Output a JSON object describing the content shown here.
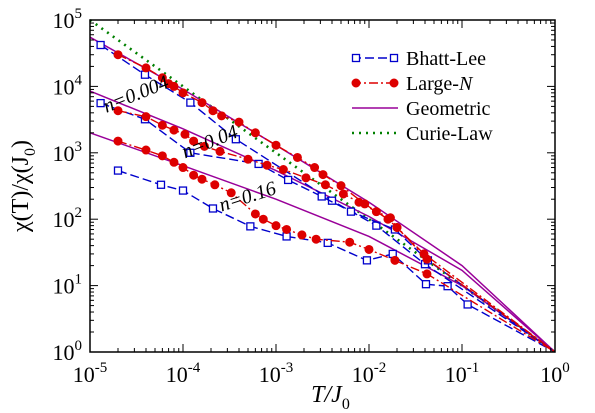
{
  "chart_data": {
    "type": "line",
    "xscale": "log",
    "yscale": "log",
    "xlim": [
      1e-05,
      1
    ],
    "ylim": [
      1,
      100000
    ],
    "x_ticks": [
      {
        "value": 1e-05,
        "base": "10",
        "exp": "-5"
      },
      {
        "value": 0.0001,
        "base": "10",
        "exp": "-4"
      },
      {
        "value": 0.001,
        "base": "10",
        "exp": "-3"
      },
      {
        "value": 0.01,
        "base": "10",
        "exp": "-2"
      },
      {
        "value": 0.1,
        "base": "10",
        "exp": "-1"
      },
      {
        "value": 1,
        "base": "10",
        "exp": "0"
      }
    ],
    "y_ticks": [
      {
        "value": 1,
        "base": "10",
        "exp": "0"
      },
      {
        "value": 10,
        "base": "10",
        "exp": "1"
      },
      {
        "value": 100,
        "base": "10",
        "exp": "2"
      },
      {
        "value": 1000,
        "base": "10",
        "exp": "3"
      },
      {
        "value": 10000,
        "base": "10",
        "exp": "4"
      },
      {
        "value": 100000,
        "base": "10",
        "exp": "5"
      }
    ],
    "xlabel": {
      "main": "T/J",
      "sub": "0"
    },
    "ylabel": {
      "text": "χ(T)/χ(J",
      "sub": "0",
      "close": ")"
    },
    "legend": {
      "position": "top-right",
      "entries": [
        {
          "label": "Bhatt-Lee",
          "series": "bhatt"
        },
        {
          "label": "Large-",
          "label_italic": "N",
          "series": "largeN"
        },
        {
          "label": "Geometric",
          "series": "geometric"
        },
        {
          "label": "Curie-Law",
          "series": "curie"
        }
      ]
    },
    "annotations": [
      {
        "text": "n=0.004",
        "x": 1.5e-05,
        "y": 4000,
        "angle": -22
      },
      {
        "text": "n=0.04",
        "x": 0.000105,
        "y": 820,
        "angle": -22
      },
      {
        "text": "n=0.16",
        "x": 0.00026,
        "y": 130,
        "angle": -18
      }
    ],
    "series": [
      {
        "name": "Curie-Law",
        "style": "curie",
        "color": "#008000",
        "points": [
          [
            1e-05,
            100000
          ],
          [
            1,
            1
          ]
        ]
      },
      {
        "style": "geometric",
        "color": "#990099",
        "points": [
          [
            1e-05,
            55000
          ],
          [
            0.0001,
            9000
          ],
          [
            0.001,
            1300
          ],
          [
            0.01,
            180
          ],
          [
            0.1,
            20
          ],
          [
            1,
            1
          ]
        ]
      },
      {
        "style": "geometric",
        "color": "#990099",
        "points": [
          [
            1e-05,
            8500
          ],
          [
            0.0001,
            2300
          ],
          [
            0.001,
            540
          ],
          [
            0.01,
            110
          ],
          [
            0.1,
            17
          ],
          [
            1,
            1
          ]
        ]
      },
      {
        "style": "geometric",
        "color": "#990099",
        "points": [
          [
            1e-05,
            2000
          ],
          [
            0.0001,
            640
          ],
          [
            0.001,
            200
          ],
          [
            0.01,
            55
          ],
          [
            0.1,
            10
          ],
          [
            1,
            1
          ]
        ]
      },
      {
        "style": "bhatt",
        "color": "#0000cc",
        "points": [
          [
            1.3e-05,
            42000
          ],
          [
            3.9e-05,
            15000
          ],
          [
            0.00012,
            5700
          ],
          [
            0.00037,
            1600
          ],
          [
            0.004,
            190
          ],
          [
            0.012,
            80
          ],
          [
            0.04,
            21
          ],
          [
            1,
            1
          ]
        ]
      },
      {
        "style": "bhatt",
        "color": "#0000cc",
        "points": [
          [
            1.3e-05,
            5600
          ],
          [
            3.9e-05,
            3200
          ],
          [
            0.00012,
            1000
          ],
          [
            0.00065,
            680
          ],
          [
            0.00135,
            390
          ],
          [
            0.0031,
            220
          ],
          [
            0.0064,
            130
          ],
          [
            0.019,
            70
          ],
          [
            0.043,
            24
          ],
          [
            1,
            1
          ]
        ]
      },
      {
        "style": "bhatt",
        "color": "#0000cc",
        "points": [
          [
            2e-05,
            540
          ],
          [
            5.8e-05,
            330
          ],
          [
            0.0001,
            270
          ],
          [
            0.00021,
            145
          ],
          [
            0.00053,
            78
          ],
          [
            0.0013,
            55
          ],
          [
            0.0036,
            44
          ],
          [
            0.0095,
            24
          ],
          [
            0.018,
            30
          ],
          [
            0.041,
            10.5
          ],
          [
            0.07,
            9.8
          ],
          [
            0.115,
            5.2
          ],
          [
            1,
            1
          ]
        ]
      },
      {
        "style": "largeN",
        "color": "#dd0000",
        "points": [
          [
            2e-05,
            30000
          ],
          [
            4e-05,
            19000
          ],
          [
            6e-05,
            13500
          ],
          [
            7e-05,
            11000
          ],
          [
            8e-05,
            10000
          ],
          [
            0.0001,
            8000
          ],
          [
            0.00016,
            5700
          ],
          [
            0.00021,
            4300
          ],
          [
            0.00026,
            3600
          ],
          [
            0.0004,
            2900
          ],
          [
            0.0006,
            2000
          ],
          [
            0.001,
            1300
          ],
          [
            0.0017,
            850
          ],
          [
            0.0026,
            600
          ],
          [
            0.0032,
            470
          ],
          [
            0.005,
            320
          ],
          [
            0.009,
            170
          ],
          [
            0.016,
            100
          ],
          [
            0.02,
            75
          ],
          [
            0.039,
            30
          ],
          [
            1,
            1
          ]
        ]
      },
      {
        "style": "largeN",
        "color": "#dd0000",
        "points": [
          [
            2e-05,
            4300
          ],
          [
            4e-05,
            3500
          ],
          [
            6e-05,
            2600
          ],
          [
            8e-05,
            2200
          ],
          [
            0.000105,
            1900
          ],
          [
            0.00013,
            1500
          ],
          [
            0.00017,
            1250
          ],
          [
            0.00025,
            1050
          ],
          [
            0.0005,
            800
          ],
          [
            0.0008,
            650
          ],
          [
            0.0012,
            560
          ],
          [
            0.0021,
            420
          ],
          [
            0.0034,
            330
          ],
          [
            0.0053,
            240
          ],
          [
            0.0078,
            180
          ],
          [
            0.012,
            130
          ],
          [
            0.017,
            105
          ],
          [
            0.02,
            75
          ],
          [
            0.042,
            25
          ],
          [
            1,
            1
          ]
        ]
      },
      {
        "style": "largeN",
        "color": "#dd0000",
        "points": [
          [
            2e-05,
            1500
          ],
          [
            4e-05,
            1100
          ],
          [
            6e-05,
            900
          ],
          [
            8e-05,
            720
          ],
          [
            0.0001,
            600
          ],
          [
            0.00013,
            460
          ],
          [
            0.00016,
            400
          ],
          [
            0.00022,
            330
          ],
          [
            0.00033,
            250
          ],
          [
            0.0006,
            120
          ],
          [
            0.00073,
            100
          ],
          [
            0.001,
            80
          ],
          [
            0.0013,
            70
          ],
          [
            0.0019,
            58
          ],
          [
            0.0027,
            50
          ],
          [
            0.0062,
            45
          ],
          [
            0.01,
            35
          ],
          [
            0.019,
            24
          ],
          [
            0.042,
            15
          ],
          [
            1,
            1
          ]
        ]
      }
    ]
  }
}
